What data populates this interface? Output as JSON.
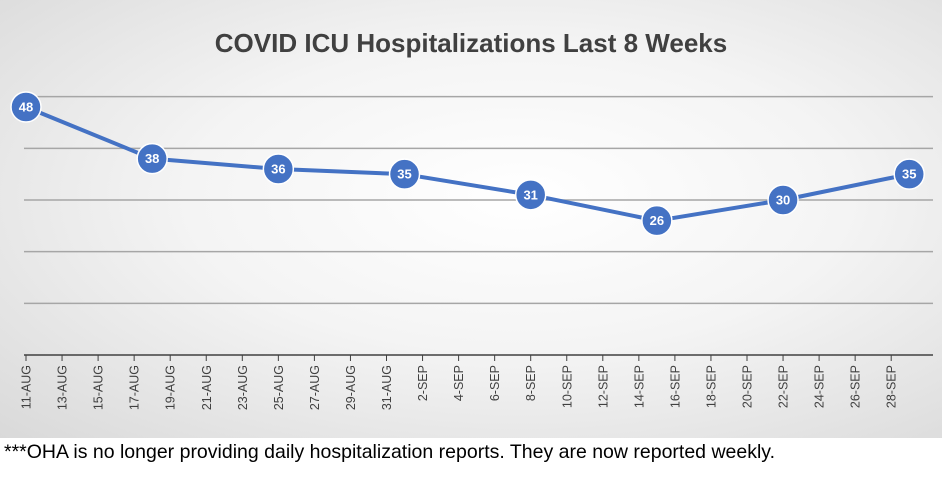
{
  "colors": {
    "line": "#4472c4",
    "marker_stroke": "#ffffff",
    "grid": "#a6a6a6",
    "axis": "#404040"
  },
  "chart_data": {
    "type": "line",
    "title": "COVID ICU Hospitalizations Last 8 Weeks",
    "xlabel": "",
    "ylabel": "",
    "grid": true,
    "ylim": [
      0,
      60
    ],
    "yticks": [
      10,
      20,
      30,
      40,
      50
    ],
    "categories": [
      "11-AUG",
      "13-AUG",
      "15-AUG",
      "17-AUG",
      "19-AUG",
      "21-AUG",
      "23-AUG",
      "25-AUG",
      "27-AUG",
      "29-AUG",
      "31-AUG",
      "2-SEP",
      "4-SEP",
      "6-SEP",
      "8-SEP",
      "10-SEP",
      "12-SEP",
      "14-SEP",
      "16-SEP",
      "18-SEP",
      "20-SEP",
      "22-SEP",
      "24-SEP",
      "26-SEP",
      "28-SEP"
    ],
    "series": [
      {
        "name": "ICU Hospitalizations",
        "points": [
          {
            "category": "11-AUG",
            "value": 48
          },
          {
            "category": "18-AUG",
            "value": 38
          },
          {
            "category": "25-AUG",
            "value": 36
          },
          {
            "category": "1-SEP",
            "value": 35
          },
          {
            "category": "8-SEP",
            "value": 31
          },
          {
            "category": "15-SEP",
            "value": 26
          },
          {
            "category": "22-SEP",
            "value": 30
          },
          {
            "category": "29-SEP",
            "value": 35
          }
        ]
      }
    ]
  },
  "footnote": "***OHA is no longer providing daily hospitalization reports.  They are now reported weekly."
}
